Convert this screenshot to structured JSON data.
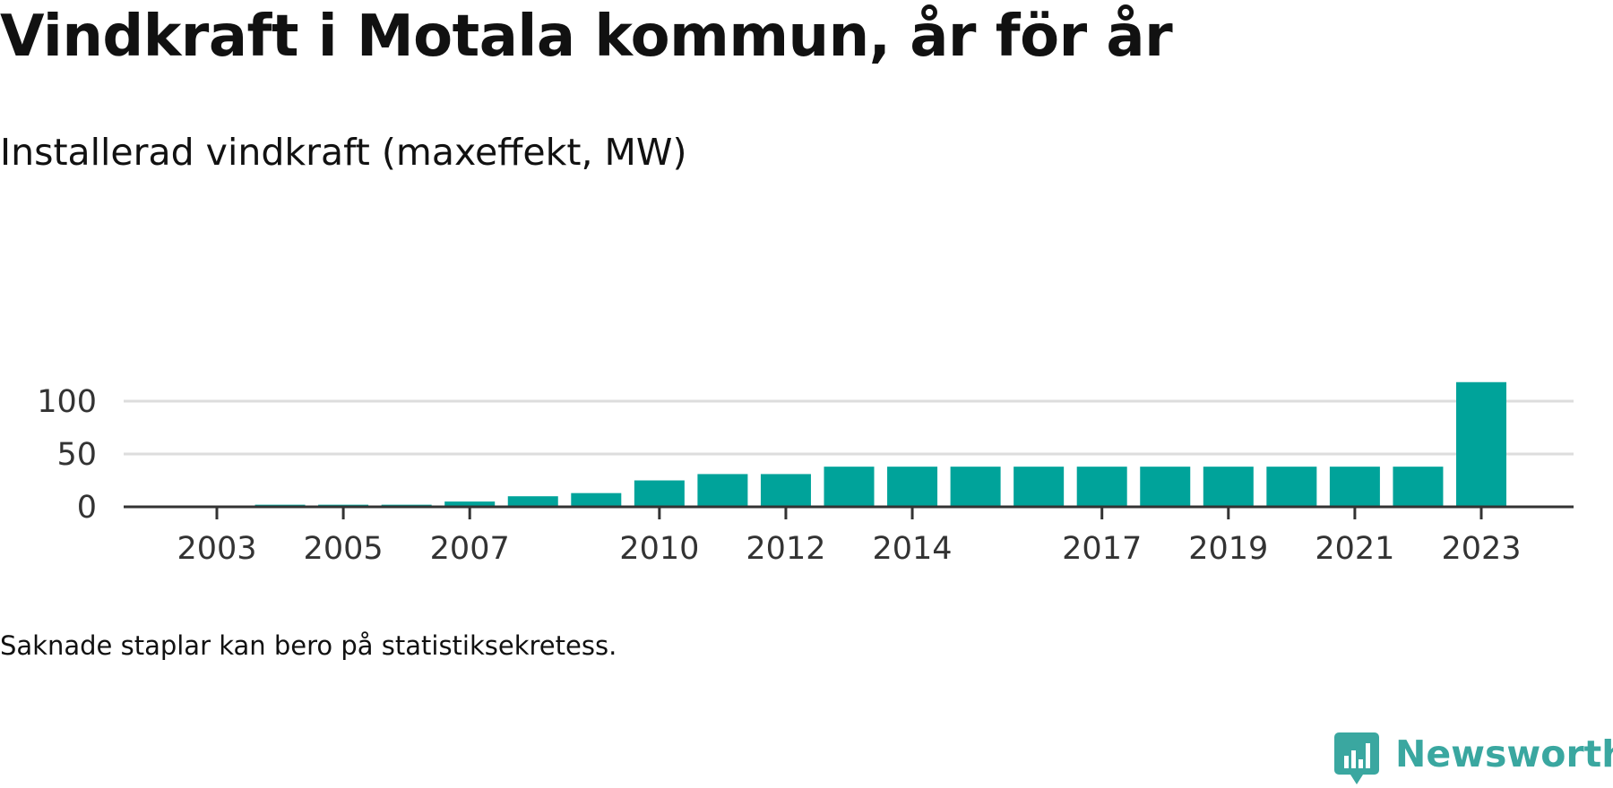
{
  "title": "Vindkraft i Motala kommun, år för år",
  "subtitle": "Installerad vindkraft (maxeffekt, MW)",
  "note": "Saknade staplar kan bero på statistiksekretess.",
  "brand": {
    "name": "Newsworthy",
    "icon": "newsworthy-logo-icon",
    "color": "#3aa7a0"
  },
  "colors": {
    "bar": "#00a39a",
    "grid": "#dddddd",
    "axis": "#333333"
  },
  "chart_data": {
    "type": "bar",
    "title": "Vindkraft i Motala kommun, år för år",
    "subtitle": "Installerad vindkraft (maxeffekt, MW)",
    "xlabel": "",
    "ylabel": "",
    "categories": [
      "2003",
      "2004",
      "2005",
      "2006",
      "2007",
      "2008",
      "2009",
      "2010",
      "2011",
      "2012",
      "2013",
      "2014",
      "2015",
      "2016",
      "2017",
      "2018",
      "2019",
      "2020",
      "2021",
      "2022",
      "2023"
    ],
    "values": [
      0,
      2,
      2,
      2,
      5,
      10,
      13,
      25,
      31,
      31,
      38,
      38,
      38,
      38,
      38,
      38,
      38,
      38,
      38,
      38,
      118
    ],
    "x_tick_labels": [
      "2003",
      "2005",
      "2007",
      "2010",
      "2012",
      "2014",
      "2017",
      "2019",
      "2021",
      "2023"
    ],
    "y_ticks": [
      0,
      50,
      100
    ],
    "ylim": [
      0,
      118
    ],
    "grid": true,
    "legend": "none"
  }
}
